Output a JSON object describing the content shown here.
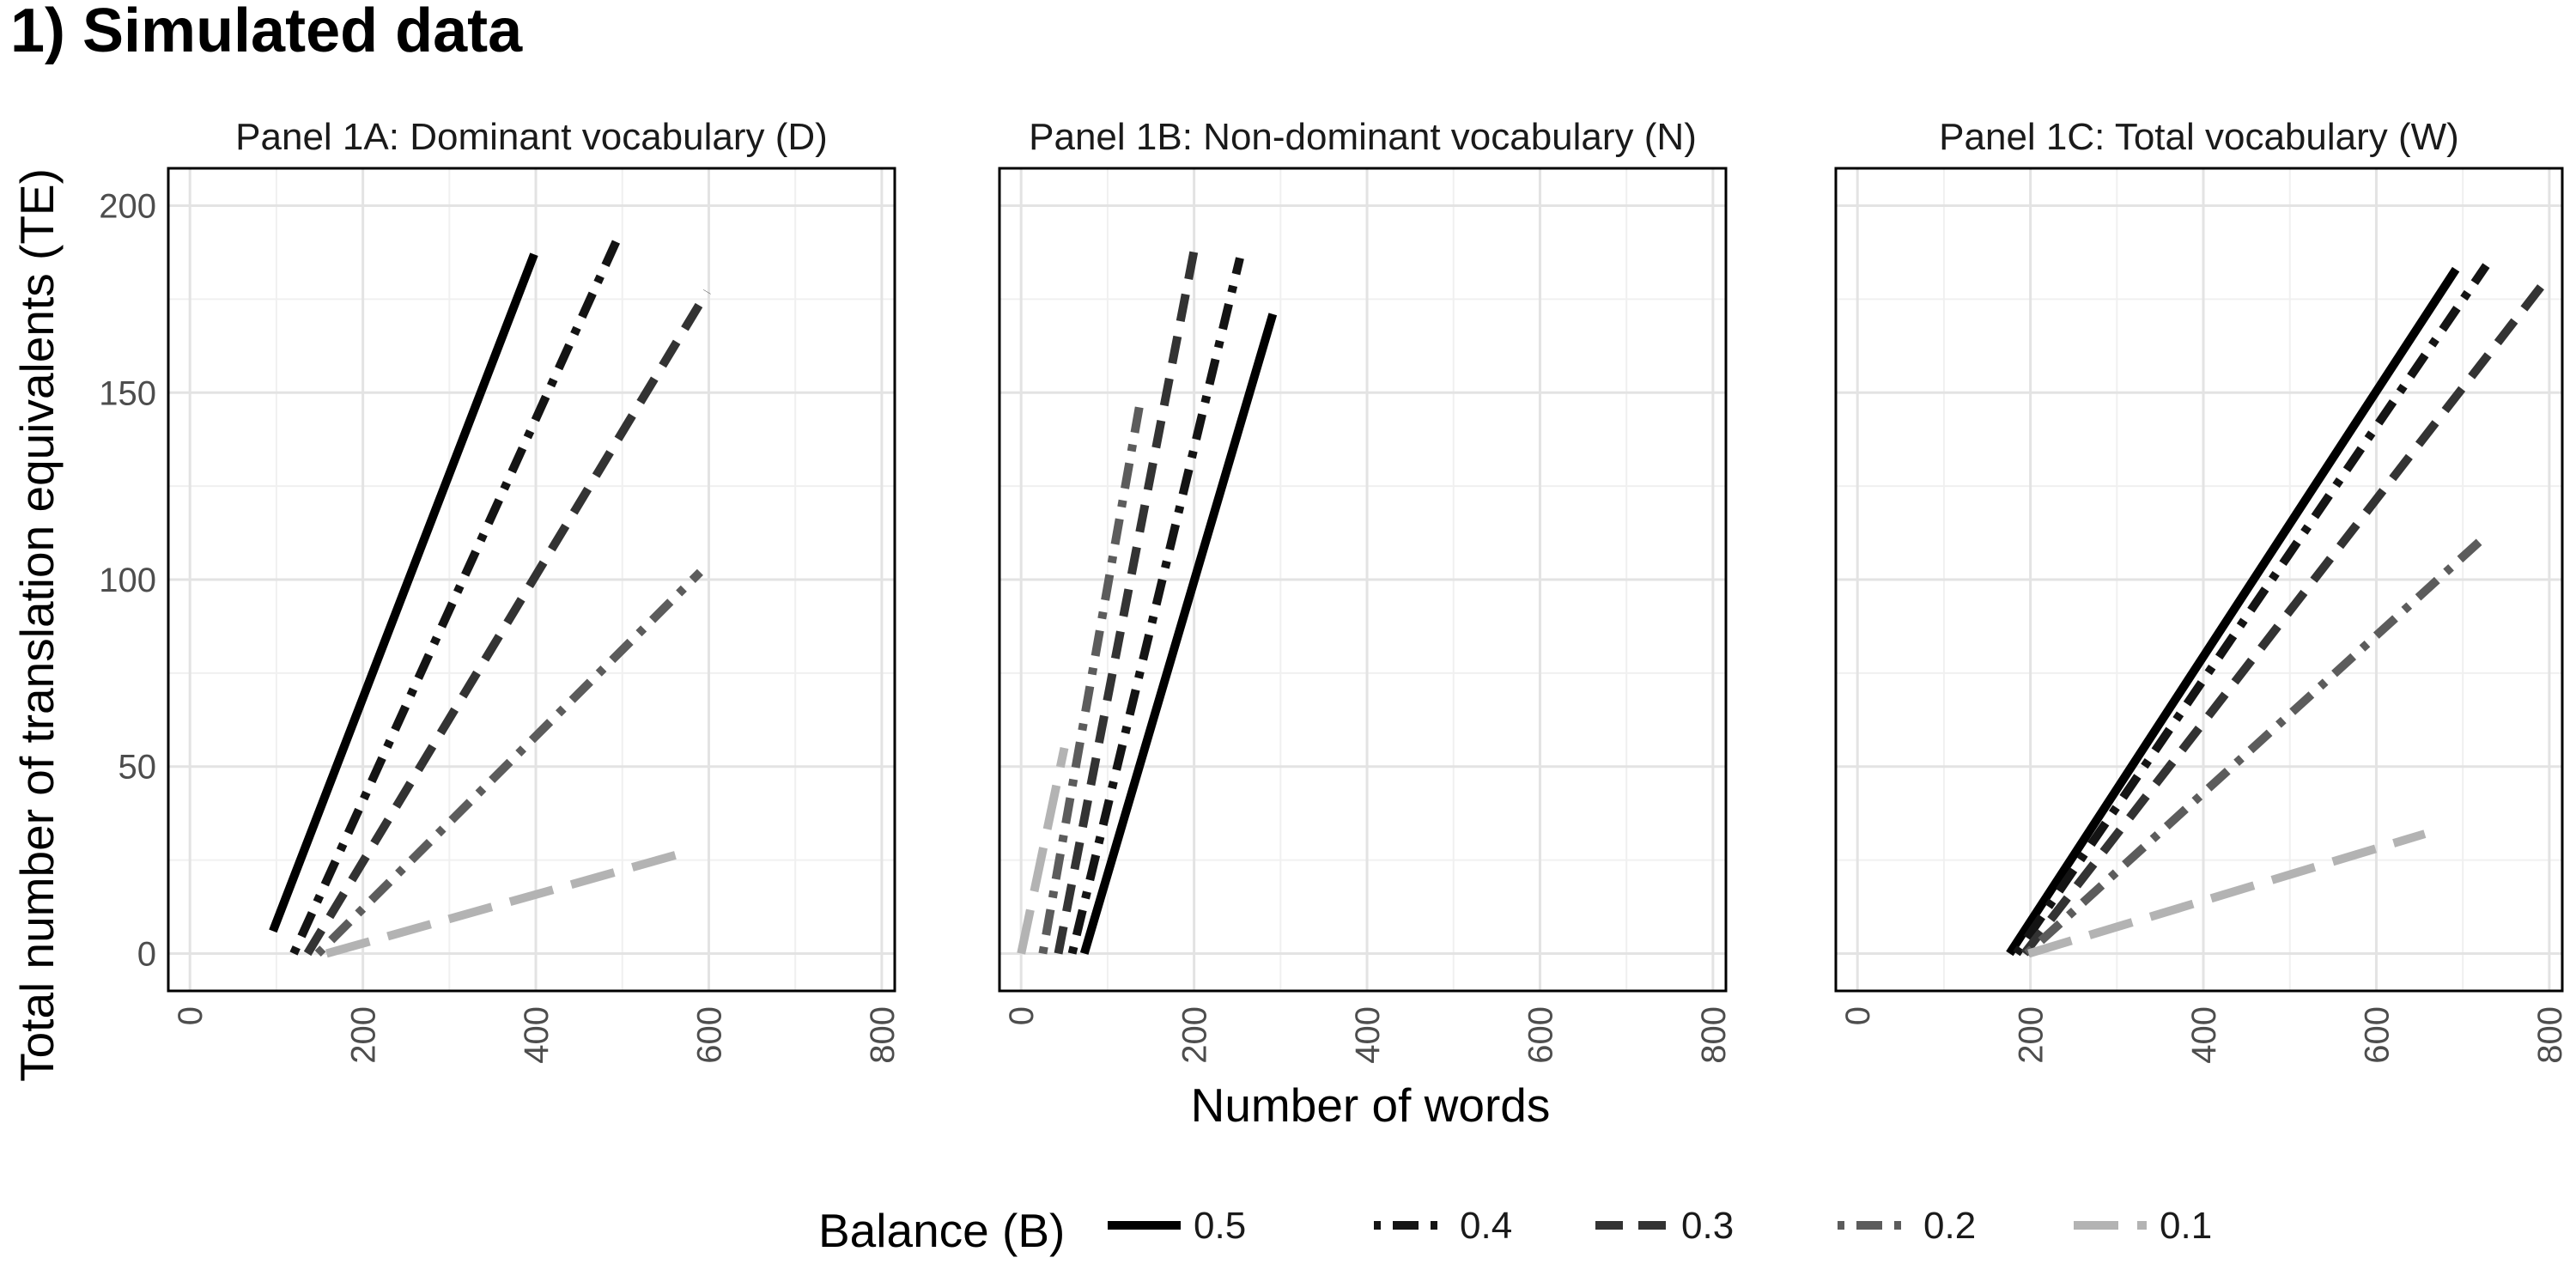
{
  "figure": {
    "title": "1) Simulated data"
  },
  "chart_data": {
    "type": "line",
    "xlabel": "Number of words",
    "ylabel": "Total number of translation equivalents (TE)",
    "xlim": [
      -25,
      815
    ],
    "ylim": [
      -10,
      210
    ],
    "x_ticks": [
      0,
      200,
      400,
      600,
      800
    ],
    "y_ticks": [
      0,
      50,
      100,
      150,
      200
    ],
    "grid": true,
    "legend": {
      "title": "Balance (B)",
      "position": "bottom",
      "entries": [
        "0.5",
        "0.4",
        "0.3",
        "0.2",
        "0.1"
      ]
    },
    "panels": [
      {
        "strip": "Panel 1A: Dominant vocabulary (D)",
        "series": [
          {
            "name": "0.5",
            "color": "#000000",
            "dash": "solid",
            "x": [
              96,
              398
            ],
            "y": [
              6,
              187
            ]
          },
          {
            "name": "0.4",
            "color": "#141414",
            "dash": "dotdash",
            "x": [
              120,
              496
            ],
            "y": [
              0,
              192
            ]
          },
          {
            "name": "0.3",
            "color": "#333333",
            "dash": "dashed",
            "x": [
              136,
              598
            ],
            "y": [
              0,
              177
            ]
          },
          {
            "name": "0.2",
            "color": "#5c5c5c",
            "dash": "dotdash",
            "x": [
              148,
              590
            ],
            "y": [
              0,
              102
            ]
          },
          {
            "name": "0.1",
            "color": "#b3b3b3",
            "dash": "longdash",
            "x": [
              158,
              572
            ],
            "y": [
              0,
              27
            ]
          }
        ]
      },
      {
        "strip": "Panel 1B: Non-dominant vocabulary (N)",
        "series": [
          {
            "name": "0.5",
            "color": "#000000",
            "dash": "solid",
            "x": [
              73,
              291
            ],
            "y": [
              0,
              171
            ]
          },
          {
            "name": "0.4",
            "color": "#141414",
            "dash": "dotdash",
            "x": [
              59,
              253
            ],
            "y": [
              0,
              186
            ]
          },
          {
            "name": "0.3",
            "color": "#333333",
            "dash": "dashed",
            "x": [
              43,
              200
            ],
            "y": [
              0,
              188
            ]
          },
          {
            "name": "0.2",
            "color": "#5c5c5c",
            "dash": "dotdash",
            "x": [
              25,
              138
            ],
            "y": [
              0,
              148
            ]
          },
          {
            "name": "0.1",
            "color": "#b3b3b3",
            "dash": "longdash",
            "x": [
              0,
              50
            ],
            "y": [
              0,
              55
            ]
          }
        ]
      },
      {
        "strip": "Panel 1C: Total vocabulary (W)",
        "series": [
          {
            "name": "0.5",
            "color": "#000000",
            "dash": "solid",
            "x": [
              176,
              692
            ],
            "y": [
              0,
              183
            ]
          },
          {
            "name": "0.4",
            "color": "#141414",
            "dash": "dotdash",
            "x": [
              184,
              727
            ],
            "y": [
              0,
              184
            ]
          },
          {
            "name": "0.3",
            "color": "#333333",
            "dash": "dashed",
            "x": [
              193,
              796
            ],
            "y": [
              0,
              180
            ]
          },
          {
            "name": "0.2",
            "color": "#5c5c5c",
            "dash": "dotdash",
            "x": [
              196,
              728
            ],
            "y": [
              0,
              112
            ]
          },
          {
            "name": "0.1",
            "color": "#b3b3b3",
            "dash": "longdash",
            "x": [
              198,
              656
            ],
            "y": [
              0,
              32
            ]
          }
        ]
      }
    ]
  }
}
